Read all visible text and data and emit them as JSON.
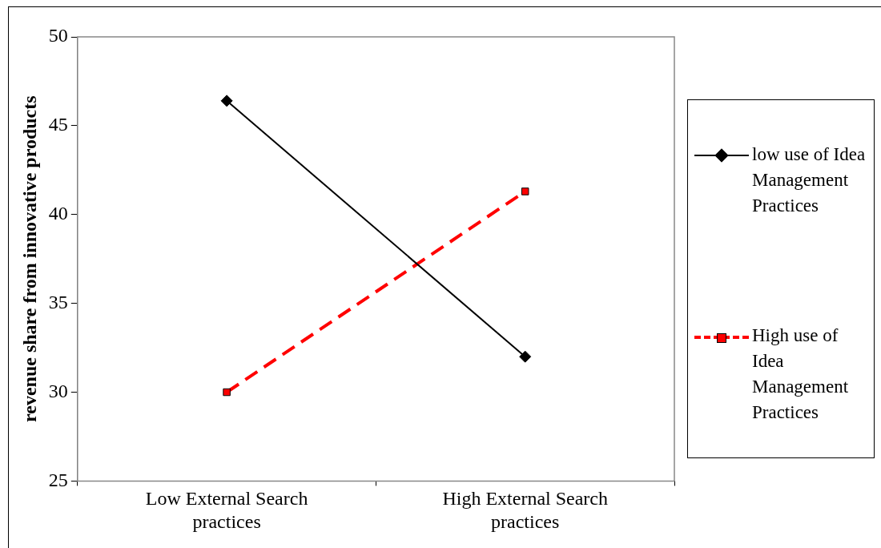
{
  "chart_data": {
    "type": "line",
    "ylabel": "revenue share from innovative products",
    "categories": [
      "Low External Search practices",
      "High External Search practices"
    ],
    "series": [
      {
        "name": "low use of Idea Management Practices",
        "color": "#000000",
        "values": [
          46.4,
          32.0
        ],
        "marker": "diamond",
        "line_style": "solid"
      },
      {
        "name": "High use of Idea Management Practices",
        "color": "#ff0000",
        "values": [
          30.0,
          41.3
        ],
        "marker": "square",
        "line_style": "dashed"
      }
    ],
    "ylim": [
      25,
      50
    ],
    "yticks": [
      25,
      30,
      35,
      40,
      45,
      50
    ],
    "grid": false,
    "legend": "right"
  }
}
